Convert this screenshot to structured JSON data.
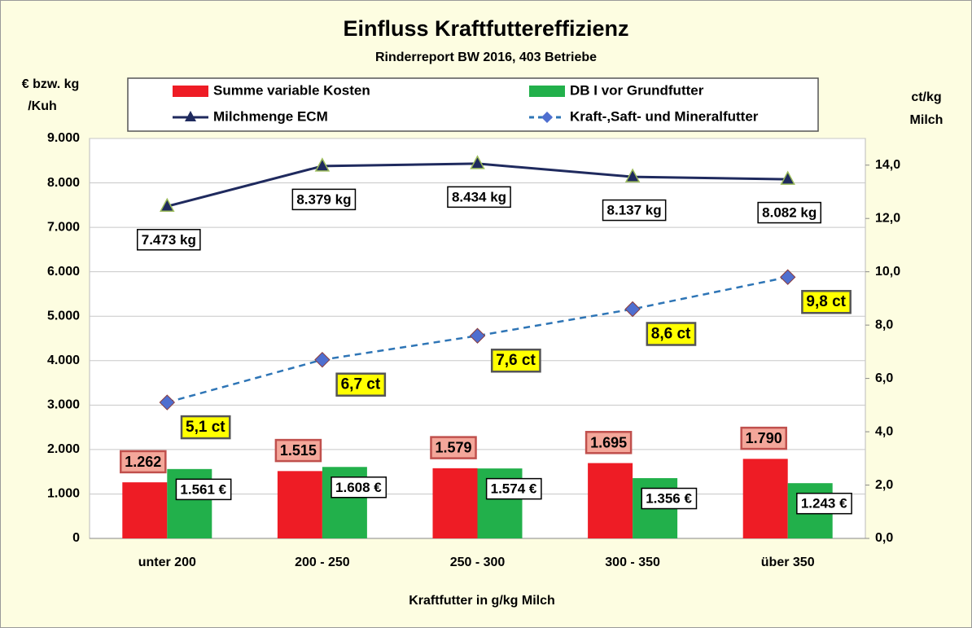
{
  "chart_data": {
    "type": "bar",
    "title": "Einfluss Kraftfuttereffizienz",
    "subtitle": "Rinderreport BW 2016, 403 Betriebe",
    "y_label": [
      "€ bzw. kg",
      "/Kuh"
    ],
    "y2_label": [
      "ct/kg",
      "Milch"
    ],
    "x_label": "Kraftfutter in g/kg Milch",
    "categories": [
      "unter 200",
      "200 - 250",
      "250 - 300",
      "300 - 350",
      "über 350"
    ],
    "ylim": [
      0,
      9000
    ],
    "yticks": [
      0,
      {
        "value": 1000,
        "label": "1.000"
      },
      {
        "value": 2000,
        "label": "2.000"
      },
      {
        "value": 3000,
        "label": "3.000"
      },
      {
        "value": 4000,
        "label": "4.000"
      },
      {
        "value": 5000,
        "label": "5.000"
      },
      {
        "value": 6000,
        "label": "6.000"
      },
      {
        "value": 7000,
        "label": "7.000"
      },
      {
        "value": 8000,
        "label": "8.000"
      },
      {
        "value": 9000,
        "label": "9.000"
      }
    ],
    "y2lim": [
      0,
      15
    ],
    "y2ticks": [
      {
        "value": 0,
        "label": "0,0"
      },
      {
        "value": 2,
        "label": "2,0"
      },
      {
        "value": 4,
        "label": "4,0"
      },
      {
        "value": 6,
        "label": "6,0"
      },
      {
        "value": 8,
        "label": "8,0"
      },
      {
        "value": 10,
        "label": "10,0"
      },
      {
        "value": 12,
        "label": "12,0"
      },
      {
        "value": 14,
        "label": "14,0"
      }
    ],
    "grid": true,
    "legend": "top",
    "series": [
      {
        "name": "Summe variable Kosten",
        "type": "bar",
        "color": "#ee1c25",
        "values": [
          1262,
          1515,
          1579,
          1695,
          1790
        ],
        "value_labels": [
          "1.262",
          "1.515",
          "1.579",
          "1.695",
          "1.790"
        ]
      },
      {
        "name": "DB I vor Grundfutter",
        "type": "bar",
        "color": "#22b04b",
        "values": [
          1561,
          1608,
          1574,
          1356,
          1243
        ],
        "value_labels": [
          "1.561 €",
          "1.608 €",
          "1.574 €",
          "1.356 €",
          "1.243 €"
        ]
      },
      {
        "name": "Milchmenge ECM",
        "type": "line",
        "color": "#1f2a5e",
        "marker": "triangle",
        "values": [
          7473,
          8379,
          8434,
          8137,
          8082
        ],
        "value_labels": [
          "7.473 kg",
          "8.379 kg",
          "8.434 kg",
          "8.137 kg",
          "8.082 kg"
        ]
      },
      {
        "name": "Kraft-,Saft- und Mineralfutter",
        "type": "line",
        "axis": "y2",
        "dashed": true,
        "color": "#2e75b6",
        "marker": "diamond",
        "values": [
          5.1,
          6.7,
          7.6,
          8.6,
          9.8
        ],
        "value_labels": [
          "5,1 ct",
          "6,7 ct",
          "7,6 ct",
          "8,6 ct",
          "9,8 ct"
        ]
      }
    ]
  }
}
